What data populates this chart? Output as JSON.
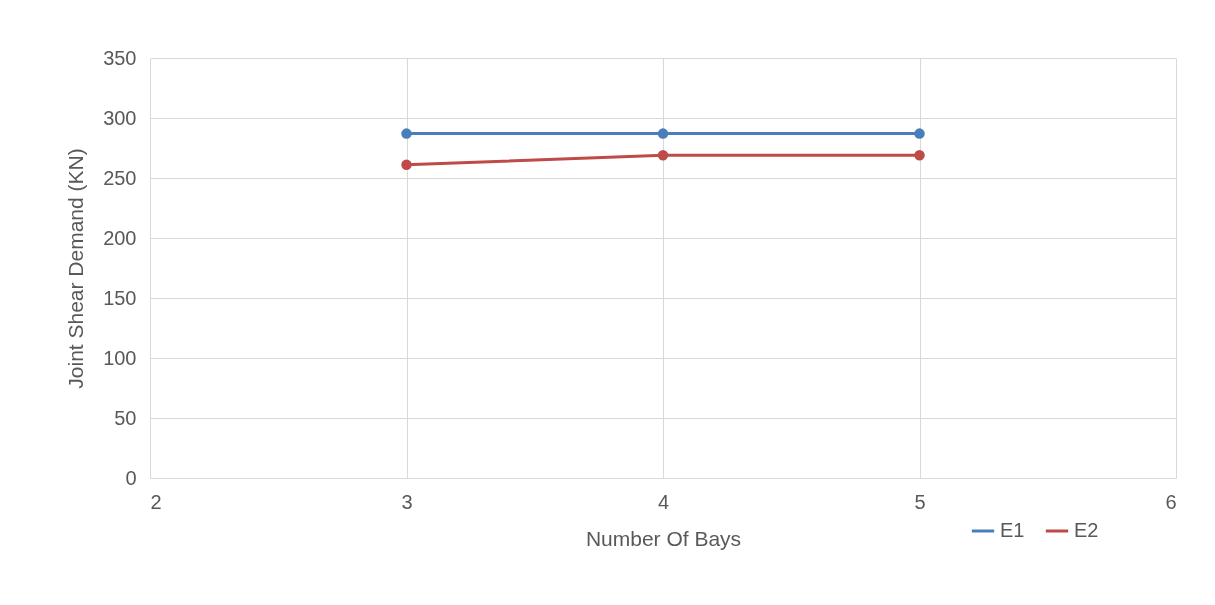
{
  "chart_data": {
    "type": "line",
    "xlabel": "Number Of Bays",
    "ylabel": "Joint Shear Demand (KN)",
    "x": [
      3,
      4,
      5
    ],
    "series": [
      {
        "name": "E1",
        "color": "#4a7ebb",
        "values": [
          287,
          287,
          287
        ]
      },
      {
        "name": "E2",
        "color": "#be4b48",
        "values": [
          261,
          269,
          269
        ]
      }
    ],
    "xlim": [
      2,
      6
    ],
    "xticks": [
      2,
      3,
      4,
      5,
      6
    ],
    "ylim": [
      0,
      350
    ],
    "yticks": [
      0,
      50,
      100,
      150,
      200,
      250,
      300,
      350
    ],
    "grid": true,
    "legend": "bottom right",
    "marker": "circle",
    "line_style": "solid"
  }
}
